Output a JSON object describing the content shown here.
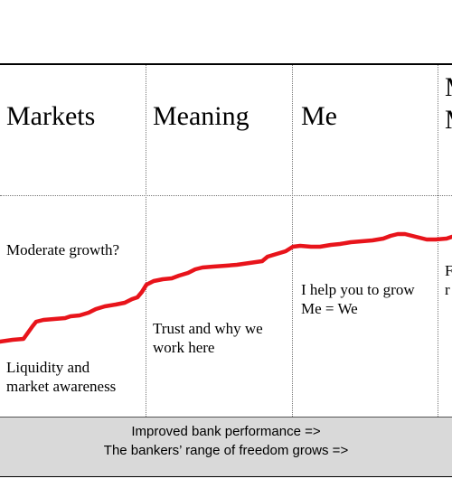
{
  "columns": [
    {
      "heading": "Markets",
      "top_note": "Moderate growth?",
      "bottom_note": [
        "Liquidity and",
        "market awareness"
      ]
    },
    {
      "heading": "Meaning",
      "note": [
        "Trust and why we",
        "work here"
      ]
    },
    {
      "heading": "Me",
      "note": [
        "I help you to grow",
        "Me = We"
      ]
    }
  ],
  "partial_column": {
    "heading_fragment_1": "M",
    "heading_fragment_2": "M",
    "note_fragment_1": "F",
    "note_fragment_2": "r"
  },
  "footer": {
    "line1": "Improved bank performance =>",
    "line2": "The bankers’ range of freedom grows =>"
  },
  "colors": {
    "curve": "#e8141b",
    "footer_bg": "#d9d9d9"
  }
}
